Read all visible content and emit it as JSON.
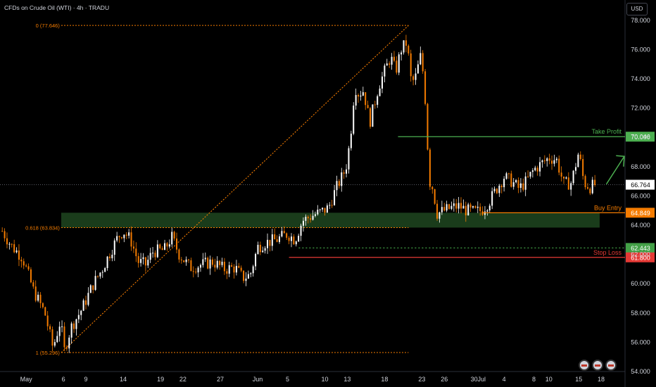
{
  "header": {
    "title": "CFDs on Crude Oil (WTI) · 4h · TRADU",
    "currency": "USD"
  },
  "chart_data": {
    "type": "candlestick",
    "ylim": [
      54,
      79
    ],
    "y_ticks": [
      "54.000",
      "56.000",
      "58.000",
      "60.000",
      "62.000",
      "64.000",
      "66.000",
      "68.000",
      "70.000",
      "72.000",
      "74.000",
      "76.000",
      "78.000"
    ],
    "x_ticks": [
      {
        "label": "May",
        "day": 1
      },
      {
        "label": "6",
        "day": 6
      },
      {
        "label": "9",
        "day": 9
      },
      {
        "label": "14",
        "day": 14
      },
      {
        "label": "19",
        "day": 19
      },
      {
        "label": "22",
        "day": 22
      },
      {
        "label": "27",
        "day": 27
      },
      {
        "label": "Jun",
        "day": 32
      },
      {
        "label": "5",
        "day": 36
      },
      {
        "label": "10",
        "day": 41
      },
      {
        "label": "13",
        "day": 44
      },
      {
        "label": "18",
        "day": 49
      },
      {
        "label": "23",
        "day": 54
      },
      {
        "label": "26",
        "day": 57
      },
      {
        "label": "30",
        "day": 61
      },
      {
        "label": "Jul",
        "day": 62
      },
      {
        "label": "4",
        "day": 65
      },
      {
        "label": "8",
        "day": 69
      },
      {
        "label": "10",
        "day": 71
      },
      {
        "label": "15",
        "day": 75
      },
      {
        "label": "18",
        "day": 78
      }
    ],
    "x_range": [
      -2.5,
      81.2
    ],
    "series_path": [
      [
        -2.2,
        63.6
      ],
      [
        -1.0,
        62.6
      ],
      [
        0.5,
        61.8
      ],
      [
        2.0,
        59.5
      ],
      [
        3.5,
        58.0
      ],
      [
        4.6,
        55.6
      ],
      [
        5.6,
        57.5
      ],
      [
        6.1,
        55.4
      ],
      [
        7.0,
        57.0
      ],
      [
        8.5,
        58.3
      ],
      [
        10.0,
        60.0
      ],
      [
        11.2,
        61.0
      ],
      [
        12.3,
        62.2
      ],
      [
        13.3,
        63.2
      ],
      [
        14.0,
        63.6
      ],
      [
        15.0,
        63.0
      ],
      [
        16.0,
        61.5
      ],
      [
        17.0,
        61.3
      ],
      [
        18.0,
        62.2
      ],
      [
        19.5,
        62.3
      ],
      [
        20.5,
        63.2
      ],
      [
        21.5,
        62.0
      ],
      [
        23.0,
        61.1
      ],
      [
        24.5,
        61.3
      ],
      [
        26.0,
        61.5
      ],
      [
        27.5,
        61.0
      ],
      [
        29.0,
        61.1
      ],
      [
        30.0,
        60.4
      ],
      [
        31.0,
        60.6
      ],
      [
        32.0,
        62.5
      ],
      [
        33.0,
        62.8
      ],
      [
        34.5,
        63.0
      ],
      [
        36.0,
        63.4
      ],
      [
        37.0,
        63.0
      ],
      [
        38.0,
        64.3
      ],
      [
        39.5,
        64.7
      ],
      [
        40.5,
        64.9
      ],
      [
        41.5,
        65.2
      ],
      [
        42.5,
        66.5
      ],
      [
        43.5,
        67.5
      ],
      [
        44.0,
        68.3
      ],
      [
        44.5,
        70.5
      ],
      [
        45.0,
        73.5
      ],
      [
        45.5,
        73.0
      ],
      [
        46.2,
        73.2
      ],
      [
        47.0,
        71.0
      ],
      [
        47.5,
        72.0
      ],
      [
        48.2,
        73.5
      ],
      [
        49.0,
        74.5
      ],
      [
        49.8,
        75.5
      ],
      [
        50.5,
        74.5
      ],
      [
        51.2,
        76.0
      ],
      [
        52.0,
        76.5
      ],
      [
        52.5,
        74.0
      ],
      [
        53.0,
        73.8
      ],
      [
        53.8,
        75.5
      ],
      [
        54.3,
        74.0
      ],
      [
        54.7,
        70.0
      ],
      [
        55.0,
        67.0
      ],
      [
        55.5,
        66.5
      ],
      [
        56.0,
        64.8
      ],
      [
        57.0,
        65.0
      ],
      [
        58.0,
        65.2
      ],
      [
        59.0,
        65.3
      ],
      [
        60.0,
        65.0
      ],
      [
        61.0,
        64.9
      ],
      [
        62.0,
        65.0
      ],
      [
        63.0,
        65.6
      ],
      [
        64.0,
        66.5
      ],
      [
        65.0,
        67.3
      ],
      [
        66.0,
        67.0
      ],
      [
        67.0,
        66.5
      ],
      [
        68.0,
        67.0
      ],
      [
        69.0,
        67.8
      ],
      [
        70.0,
        68.2
      ],
      [
        71.0,
        68.6
      ],
      [
        72.0,
        68.5
      ],
      [
        73.0,
        66.8
      ],
      [
        74.0,
        66.9
      ],
      [
        75.0,
        69.0
      ],
      [
        75.7,
        66.9
      ],
      [
        76.5,
        66.6
      ],
      [
        77.3,
        66.8
      ]
    ],
    "fib_levels": [
      {
        "label": "0 (77.646)",
        "value": 77.646
      },
      {
        "label": "0.618 (63.834)",
        "value": 63.834
      },
      {
        "label": "1 (55.296)",
        "value": 55.296
      }
    ],
    "levels": [
      {
        "name": "Take Profit",
        "value": 70.046,
        "value_label": "70.046",
        "color": "#4caf50"
      },
      {
        "name": "Buy Entry",
        "value": 64.849,
        "value_label": "64.849",
        "color": "#f57c00"
      },
      {
        "name": "",
        "value": 62.443,
        "value_label": "62.443",
        "color": "#43a047"
      },
      {
        "name": "Stop Loss",
        "value": 61.8,
        "value_label": "61.800",
        "color": "#e53935"
      }
    ],
    "last_price": {
      "value": 66.764,
      "label": "66.764"
    },
    "colors": {
      "up": "#ffffff",
      "down": "#f57c00",
      "axis_text": "#d1d4dc",
      "zone": "#1e4620"
    }
  }
}
